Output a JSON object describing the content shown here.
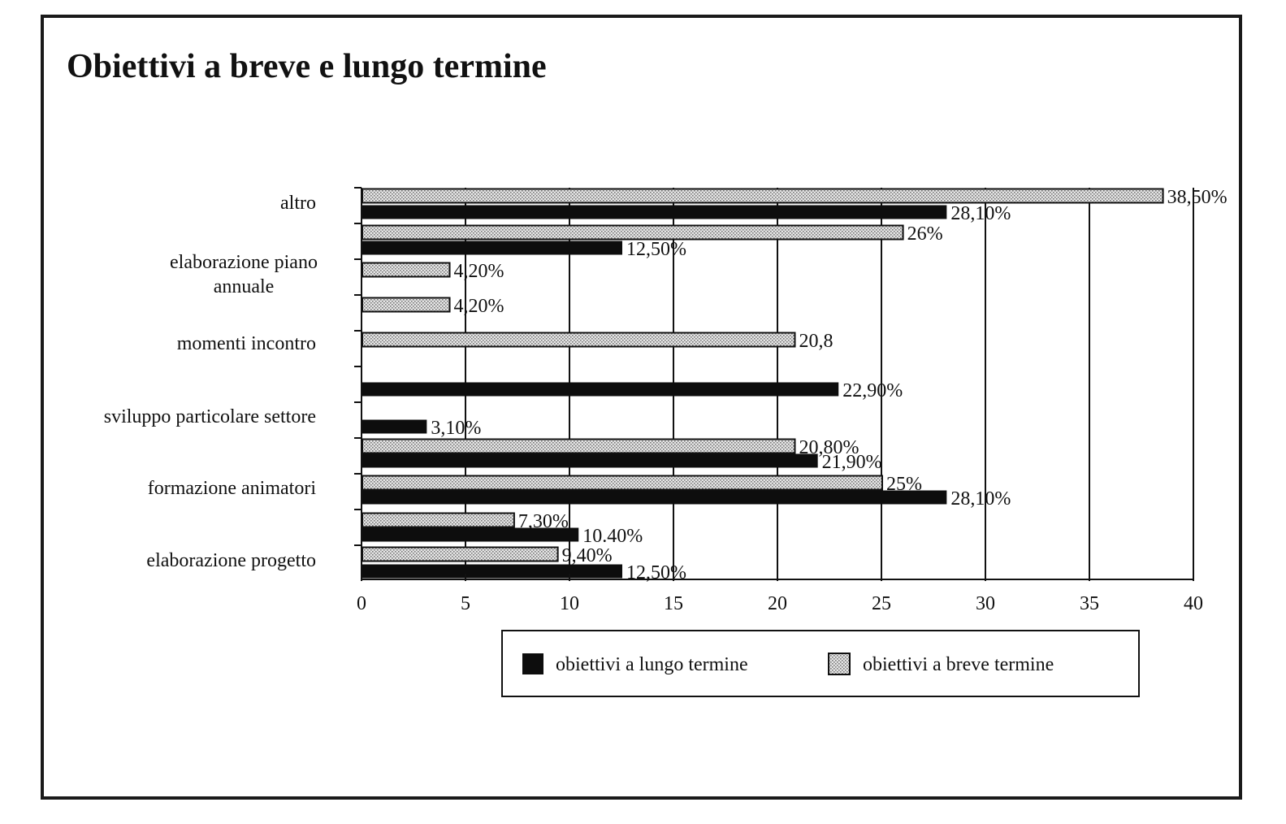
{
  "chart_data": {
    "type": "bar",
    "orientation": "horizontal",
    "title": "Obiettivi a breve e lungo termine",
    "xlim": [
      0,
      40
    ],
    "xticks": [
      "0",
      "5",
      "10",
      "15",
      "20",
      "25",
      "30",
      "35",
      "40"
    ],
    "grid": true,
    "legend_position": "bottom",
    "category_labels": [
      "altro",
      "elaborazione piano\nannuale",
      "momenti incontro",
      "sviluppo particolare settore",
      "formazione animatori",
      "elaborazione progetto"
    ],
    "series": [
      {
        "name": "obiettivi a lungo termine",
        "color": "#0d0d0d"
      },
      {
        "name": "obiettivi a breve termine",
        "color": "#d9d9d9"
      }
    ],
    "bars": [
      {
        "series": 1,
        "value": 38.5,
        "label": "38,50%"
      },
      {
        "series": 0,
        "value": 28.1,
        "label": "28,10%"
      },
      {
        "series": 1,
        "value": 26.0,
        "label": "26%"
      },
      {
        "series": 0,
        "value": 12.5,
        "label": "12,50%"
      },
      {
        "series": 1,
        "value": 4.2,
        "label": "4,20%"
      },
      {
        "series": 1,
        "value": 4.2,
        "label": "4,20%"
      },
      {
        "series": 1,
        "value": 20.8,
        "label": "20,8"
      },
      {
        "series": 0,
        "value": 22.9,
        "label": "22,90%"
      },
      {
        "series": 0,
        "value": 3.1,
        "label": "3,10%"
      },
      {
        "series": 1,
        "value": 20.8,
        "label": "20,80%"
      },
      {
        "series": 0,
        "value": 21.9,
        "label": "21,90%"
      },
      {
        "series": 1,
        "value": 25.0,
        "label": "25%"
      },
      {
        "series": 0,
        "value": 28.1,
        "label": "28,10%"
      },
      {
        "series": 1,
        "value": 7.3,
        "label": "7,30%"
      },
      {
        "series": 0,
        "value": 10.4,
        "label": "10.40%"
      },
      {
        "series": 1,
        "value": 9.4,
        "label": "9,40%"
      },
      {
        "series": 0,
        "value": 12.5,
        "label": "12,50%"
      }
    ]
  }
}
